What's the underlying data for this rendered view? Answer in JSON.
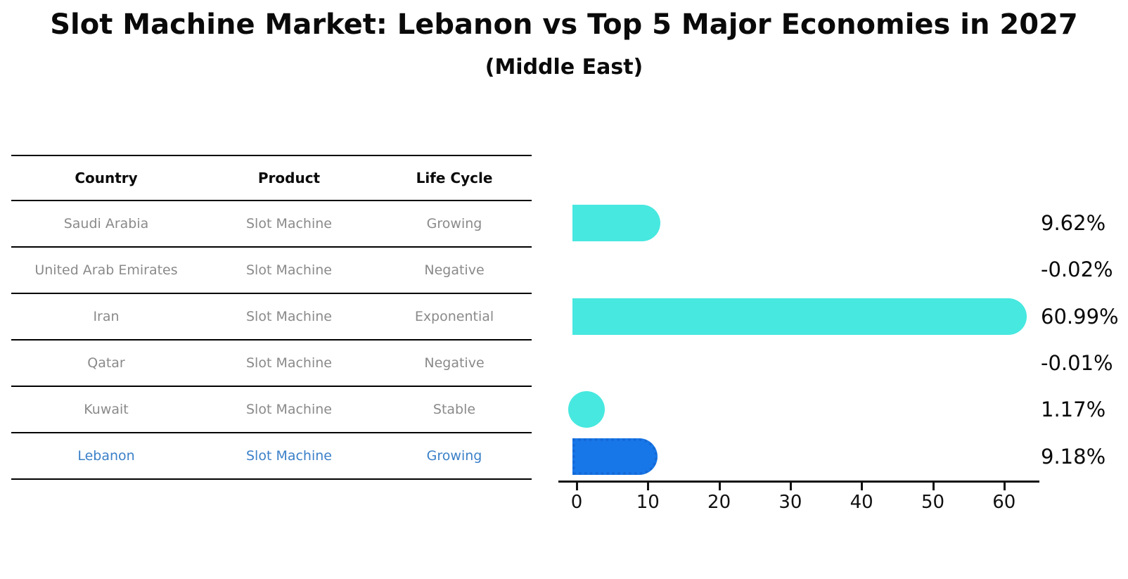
{
  "title": "Slot Machine Market: Lebanon vs Top 5 Major Economies in 2027",
  "subtitle": "(Middle East)",
  "table": {
    "headers": [
      "Country",
      "Product",
      "Life Cycle"
    ],
    "rows": [
      {
        "country": "Saudi Arabia",
        "product": "Slot Machine",
        "life_cycle": "Growing",
        "highlighted": false
      },
      {
        "country": "United Arab Emirates",
        "product": "Slot Machine",
        "life_cycle": "Negative",
        "highlighted": false
      },
      {
        "country": "Iran",
        "product": "Slot Machine",
        "life_cycle": "Exponential",
        "highlighted": false
      },
      {
        "country": "Qatar",
        "product": "Slot Machine",
        "life_cycle": "Negative",
        "highlighted": false
      },
      {
        "country": "Kuwait",
        "product": "Slot Machine",
        "life_cycle": "Stable",
        "highlighted": false
      },
      {
        "country": "Lebanon",
        "product": "Slot Machine",
        "life_cycle": "Growing",
        "highlighted": true
      }
    ]
  },
  "chart_data": {
    "type": "bar",
    "orientation": "horizontal",
    "title": "Slot Machine Market: Lebanon vs Top 5 Major Economies in 2027",
    "subtitle": "(Middle East)",
    "categories": [
      "Saudi Arabia",
      "United Arab Emirates",
      "Iran",
      "Qatar",
      "Kuwait",
      "Lebanon"
    ],
    "values": [
      9.62,
      -0.02,
      60.99,
      -0.01,
      1.17,
      9.18
    ],
    "value_labels": [
      "9.62%",
      "-0.02%",
      "60.99%",
      "-0.01%",
      "1.17%",
      "9.18%"
    ],
    "x_ticks": [
      0,
      10,
      20,
      30,
      40,
      50,
      60
    ],
    "xlim": [
      0,
      65
    ],
    "xlabel": "",
    "ylabel": "",
    "grid": false,
    "legend": false,
    "highlight_index": 5
  },
  "colors": {
    "bar": "#47e8df",
    "highlight_bar": "#1877e8",
    "highlight_border": "#1569d6",
    "highlight_text": "#3b80c8",
    "row_text": "#8a8a8a",
    "axis": "#111111"
  }
}
